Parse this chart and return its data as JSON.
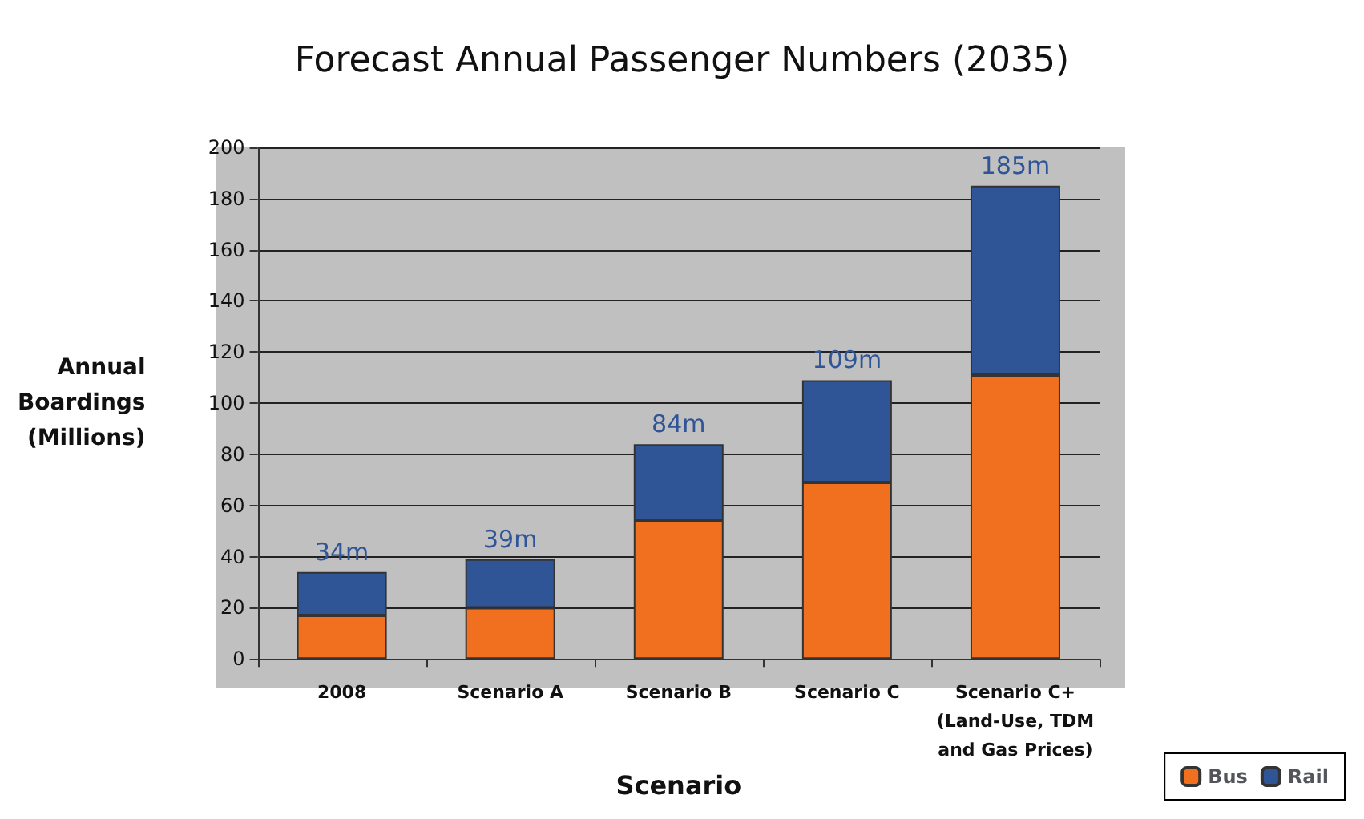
{
  "chart_data": {
    "type": "bar",
    "title": "Forecast Annual Passenger Numbers (2035)",
    "xlabel": "Scenario",
    "ylabel": "Annual\nBoardings\n(Millions)",
    "categories": [
      "2008",
      "Scenario A",
      "Scenario B",
      "Scenario C",
      "Scenario C+\n(Land-Use, TDM\nand Gas Prices)"
    ],
    "series": [
      {
        "name": "Bus",
        "color": "#f07020",
        "values": [
          17,
          20,
          54,
          69,
          111
        ]
      },
      {
        "name": "Rail",
        "color": "#2f5597",
        "values": [
          17,
          19,
          30,
          40,
          74
        ]
      }
    ],
    "stacked": true,
    "totals": [
      "34m",
      "39m",
      "84m",
      "109m",
      "185m"
    ],
    "ylim": [
      0,
      200
    ],
    "yticks": [
      0,
      20,
      40,
      60,
      80,
      100,
      120,
      140,
      160,
      180,
      200
    ],
    "grid": "y",
    "legend": "bottom right"
  }
}
